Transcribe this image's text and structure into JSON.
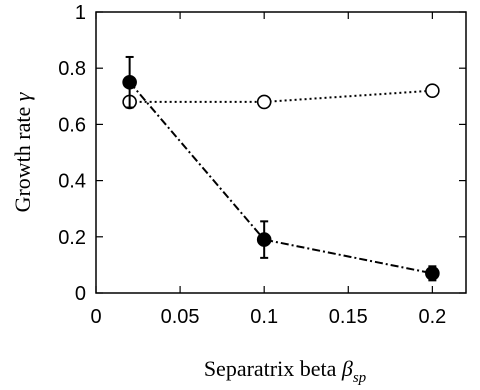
{
  "chart_data": {
    "type": "line",
    "title": "",
    "xlabel": {
      "text": "Separatrix beta ",
      "symbol": "β",
      "subscript": "sp"
    },
    "ylabel": {
      "text": "Growth rate ",
      "symbol": "γ"
    },
    "xlim": [
      0,
      0.22
    ],
    "ylim": [
      0,
      1
    ],
    "xticks": [
      0,
      0.05,
      0.1,
      0.15,
      0.2
    ],
    "xtick_labels": [
      "0",
      "0.05",
      "0.1",
      "0.15",
      "0.2"
    ],
    "yticks": [
      0,
      0.2,
      0.4,
      0.6,
      0.8,
      1
    ],
    "ytick_labels": [
      "0",
      "0.2",
      "0.4",
      "0.6",
      "0.8",
      "1"
    ],
    "grid": false,
    "legend": "none",
    "series": [
      {
        "x": [
          0.02,
          0.1,
          0.2
        ],
        "y": [
          0.68,
          0.68,
          0.72
        ],
        "marker": "open-circle",
        "line_style": "dotted",
        "color": "#000000"
      },
      {
        "x": [
          0.02,
          0.1,
          0.2
        ],
        "y": [
          0.75,
          0.19,
          0.07
        ],
        "yerr": [
          0.09,
          0.065,
          0.025
        ],
        "marker": "filled-circle",
        "line_style": "dash-dot",
        "color": "#000000"
      }
    ]
  }
}
